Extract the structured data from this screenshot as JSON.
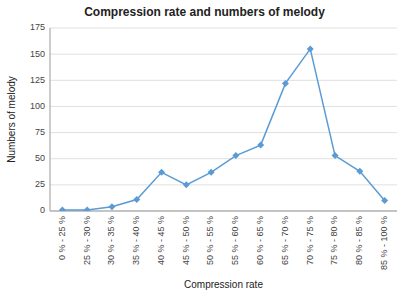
{
  "chart_data": {
    "type": "line",
    "title": "Compression rate and numbers of melody",
    "xlabel": "Compression rate",
    "ylabel": "Numbers of melody",
    "categories": [
      "0 % - 25 %",
      "25 % - 30 %",
      "30 % - 35 %",
      "35 % - 40 %",
      "40 % - 45 %",
      "45 % - 50 %",
      "50 % - 55 %",
      "55 % - 60 %",
      "60 % - 65 %",
      "65 % - 70 %",
      "70 % - 75 %",
      "75 % - 80 %",
      "80 % - 85 %",
      "85 % - 100 %"
    ],
    "values": [
      1,
      1,
      4,
      11,
      37,
      25,
      37,
      53,
      63,
      122,
      155,
      53,
      38,
      10
    ],
    "color": "#5B9BD5",
    "marker": "diamond",
    "ylim": [
      0,
      175
    ],
    "yticks": [
      0,
      25,
      50,
      75,
      100,
      125,
      150,
      175
    ],
    "grid": true
  }
}
